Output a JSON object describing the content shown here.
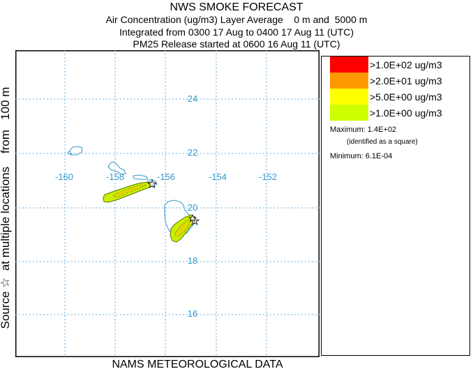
{
  "header": {
    "title": "NWS SMOKE FORECAST",
    "line2": "Air Concentration (ug/m3) Layer Average    0 m and  5000 m",
    "line3": "Integrated from 0300 17 Aug to 0400 17 Aug 11 (UTC)",
    "line4": "PM25 Release started at 0600 16 Aug 11 (UTC)"
  },
  "side_label": "Source ☆  at multiple locations    from   100 m",
  "bottom_label": "NAMS METEOROLOGICAL DATA",
  "map": {
    "lon_labels": [
      "-160",
      "-158",
      "-156",
      "-154",
      "-152"
    ],
    "lat_labels": [
      "24",
      "22",
      "20",
      "18",
      "16"
    ],
    "colors": {
      "coast": "#3399cc",
      "grid": "#66aadd",
      "plume_outer": "#ccee00",
      "plume_inner": "#e0d800",
      "plume_contour": "#557700"
    }
  },
  "legend": {
    "items": [
      {
        "label": ">1.0E+02 ug/m3",
        "color": "#ff0000"
      },
      {
        "label": ">2.0E+01 ug/m3",
        "color": "#ff9900"
      },
      {
        "label": ">5.0E+00 ug/m3",
        "color": "#ffff00"
      },
      {
        "label": ">1.0E+00 ug/m3",
        "color": "#ccff00"
      }
    ],
    "maximum": "Maximum: 1.4E+02",
    "maximum_note": "(identified as a square)",
    "minimum": "Minimum: 6.1E-04"
  }
}
